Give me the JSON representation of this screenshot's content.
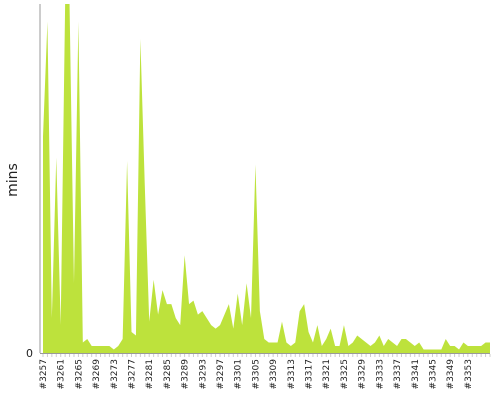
{
  "chart_data": {
    "type": "area",
    "ylabel": "mins",
    "ylim": [
      0,
      100
    ],
    "y_ticks": [
      "0"
    ],
    "x_tick_labels": [
      "#3257",
      "#3261",
      "#3265",
      "#3269",
      "#3273",
      "#3277",
      "#3281",
      "#3285",
      "#3289",
      "#3293",
      "#3297",
      "#3301",
      "#3305",
      "#3309",
      "#3313",
      "#3317",
      "#3321",
      "#3325",
      "#3329",
      "#3333",
      "#3337",
      "#3341",
      "#3345",
      "#3349",
      "#3353"
    ],
    "x_start": 3257,
    "x_end": 3358,
    "x": [
      3257,
      3258,
      3259,
      3260,
      3261,
      3262,
      3263,
      3264,
      3265,
      3266,
      3267,
      3268,
      3269,
      3270,
      3271,
      3272,
      3273,
      3274,
      3275,
      3276,
      3277,
      3278,
      3279,
      3280,
      3281,
      3282,
      3283,
      3284,
      3285,
      3286,
      3287,
      3288,
      3289,
      3290,
      3291,
      3292,
      3293,
      3294,
      3295,
      3296,
      3297,
      3298,
      3299,
      3300,
      3301,
      3302,
      3303,
      3304,
      3305,
      3306,
      3307,
      3308,
      3309,
      3310,
      3311,
      3312,
      3313,
      3314,
      3315,
      3316,
      3317,
      3318,
      3319,
      3320,
      3321,
      3322,
      3323,
      3324,
      3325,
      3326,
      3327,
      3328,
      3329,
      3330,
      3331,
      3332,
      3333,
      3334,
      3335,
      3336,
      3337,
      3338,
      3339,
      3340,
      3341,
      3342,
      3343,
      3344,
      3345,
      3346,
      3347,
      3348,
      3349,
      3350,
      3351,
      3352,
      3353,
      3354,
      3355,
      3356,
      3357,
      3358
    ],
    "y": [
      62,
      95,
      10,
      56,
      8,
      100,
      100,
      20,
      95,
      3,
      4,
      2,
      2,
      2,
      2,
      2,
      1,
      2,
      4,
      55,
      6,
      5,
      90,
      48,
      9,
      21,
      11,
      18,
      14,
      14,
      10,
      8,
      28,
      14,
      15,
      11,
      12,
      10,
      8,
      7,
      8,
      11,
      14,
      7,
      17,
      8,
      20,
      10,
      54,
      12,
      4,
      3,
      3,
      3,
      9,
      3,
      2,
      3,
      12,
      14,
      6,
      3,
      8,
      2,
      4,
      7,
      2,
      2,
      8,
      2,
      3,
      5,
      4,
      3,
      2,
      3,
      5,
      2,
      4,
      3,
      2,
      4,
      4,
      3,
      2,
      3,
      1,
      1,
      1,
      1,
      1,
      4,
      2,
      2,
      1,
      3,
      2,
      2,
      2,
      2,
      3,
      3
    ],
    "series": [
      {
        "color": "#bde23c"
      }
    ],
    "axis_color": "#999999",
    "tick_color": "#cccccc"
  }
}
